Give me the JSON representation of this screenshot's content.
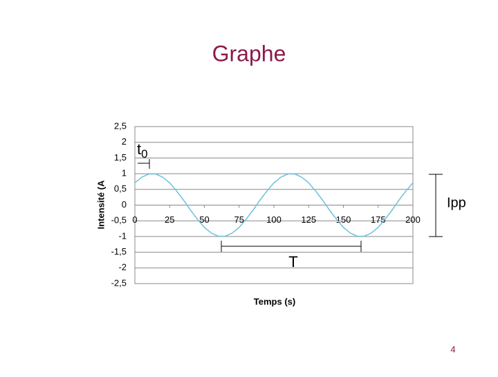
{
  "chart_data": {
    "type": "line",
    "title": "Graphe",
    "x_label": "Temps (s)",
    "y_label": "Intensité (A",
    "page_number": "4",
    "annotations": {
      "t0": [
        "t",
        "0"
      ],
      "period": "T",
      "peak_to_peak": "Ipp"
    },
    "xlim": [
      0,
      200
    ],
    "xticks": [
      0,
      25,
      50,
      75,
      100,
      125,
      150,
      175,
      200
    ],
    "ylim": [
      -2.5,
      2.5
    ],
    "yticks": [
      {
        "value": 2.5,
        "label": "2,5"
      },
      2,
      {
        "value": 1.5,
        "label": "1,5"
      },
      1,
      {
        "value": 0.5,
        "label": "0,5"
      },
      0,
      {
        "value": -0.5,
        "label": "-0,5"
      },
      -1,
      {
        "value": -1.5,
        "label": "-1,5"
      },
      -2,
      {
        "value": -2.5,
        "label": "-2,5"
      }
    ],
    "grid": true,
    "series": [
      {
        "name": "Intensité",
        "color": "#6cc0dc",
        "x": [
          0,
          5,
          10,
          15,
          20,
          25,
          30,
          35,
          40,
          45,
          50,
          55,
          60,
          65,
          70,
          75,
          80,
          85,
          90,
          95,
          100,
          105,
          110,
          115,
          120,
          125,
          130,
          135,
          140,
          145,
          150,
          155,
          160,
          165,
          170,
          175,
          180,
          185,
          190,
          195,
          200
        ],
        "values": [
          0.71,
          0.89,
          0.99,
          0.99,
          0.89,
          0.71,
          0.45,
          0.16,
          -0.16,
          -0.45,
          -0.71,
          -0.89,
          -0.99,
          -0.99,
          -0.89,
          -0.71,
          -0.45,
          -0.16,
          0.16,
          0.45,
          0.71,
          0.89,
          0.99,
          0.99,
          0.89,
          0.71,
          0.45,
          0.16,
          -0.16,
          -0.45,
          -0.71,
          -0.89,
          -0.99,
          -0.99,
          -0.89,
          -0.71,
          -0.45,
          -0.16,
          0.16,
          0.45,
          0.71
        ]
      }
    ]
  }
}
